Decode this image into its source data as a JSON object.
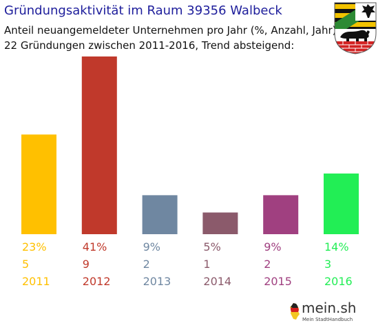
{
  "header": {
    "title": "Gründungsaktivität im Raum 39356 Walbeck",
    "subtitle_line1": "Anteil neuangemeldeter Unternehmen pro Jahr (%, Anzahl, Jahr)",
    "subtitle_line2": "22 Gründungen zwischen 2011-2016, Trend absteigend:"
  },
  "chart_data": {
    "type": "bar",
    "categories": [
      "2011",
      "2012",
      "2013",
      "2014",
      "2015",
      "2016"
    ],
    "values": [
      23,
      41,
      9,
      5,
      9,
      14
    ],
    "value_labels": [
      "23%",
      "41%",
      "9%",
      "5%",
      "9%",
      "14%"
    ],
    "counts": [
      "5",
      "9",
      "2",
      "1",
      "2",
      "3"
    ],
    "colors": [
      "#ffc000",
      "#c0392b",
      "#6f87a1",
      "#8b5a6b",
      "#a04080",
      "#22ee55"
    ],
    "units": "%",
    "ylim": [
      0,
      41
    ],
    "grid": false,
    "legend": "none"
  },
  "icons": {
    "coat_of_arms": "saxony-anhalt-coat-of-arms-icon",
    "logo_map": "germany-map-icon"
  },
  "logo": {
    "main_text": "mein.sh",
    "sub_text": "Mein StadtHandbuch"
  }
}
